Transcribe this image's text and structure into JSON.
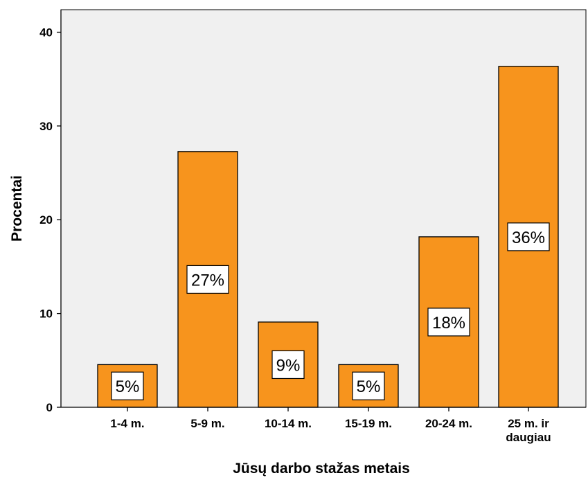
{
  "chart_data": {
    "type": "bar",
    "title": "",
    "xlabel": "Jūsų darbo stažas metais",
    "ylabel": "Procentai",
    "ylim": [
      0,
      42.4
    ],
    "yticks": [
      0,
      10,
      20,
      30,
      40
    ],
    "grid": false,
    "categories": [
      [
        "1-4 m."
      ],
      [
        "5-9 m."
      ],
      [
        "10-14 m."
      ],
      [
        "15-19 m."
      ],
      [
        "20-24 m."
      ],
      [
        "25 m. ir",
        "daugiau"
      ]
    ],
    "values": [
      4.55,
      27.27,
      9.09,
      4.55,
      18.18,
      36.36
    ],
    "data_labels": [
      "5%",
      "27%",
      "9%",
      "5%",
      "18%",
      "36%"
    ],
    "colors": {
      "bar_fill": "#F7941D",
      "bar_stroke": "#000000",
      "plot_background": "#F0F0F0",
      "label_box_fill": "#FFFFFF"
    }
  }
}
